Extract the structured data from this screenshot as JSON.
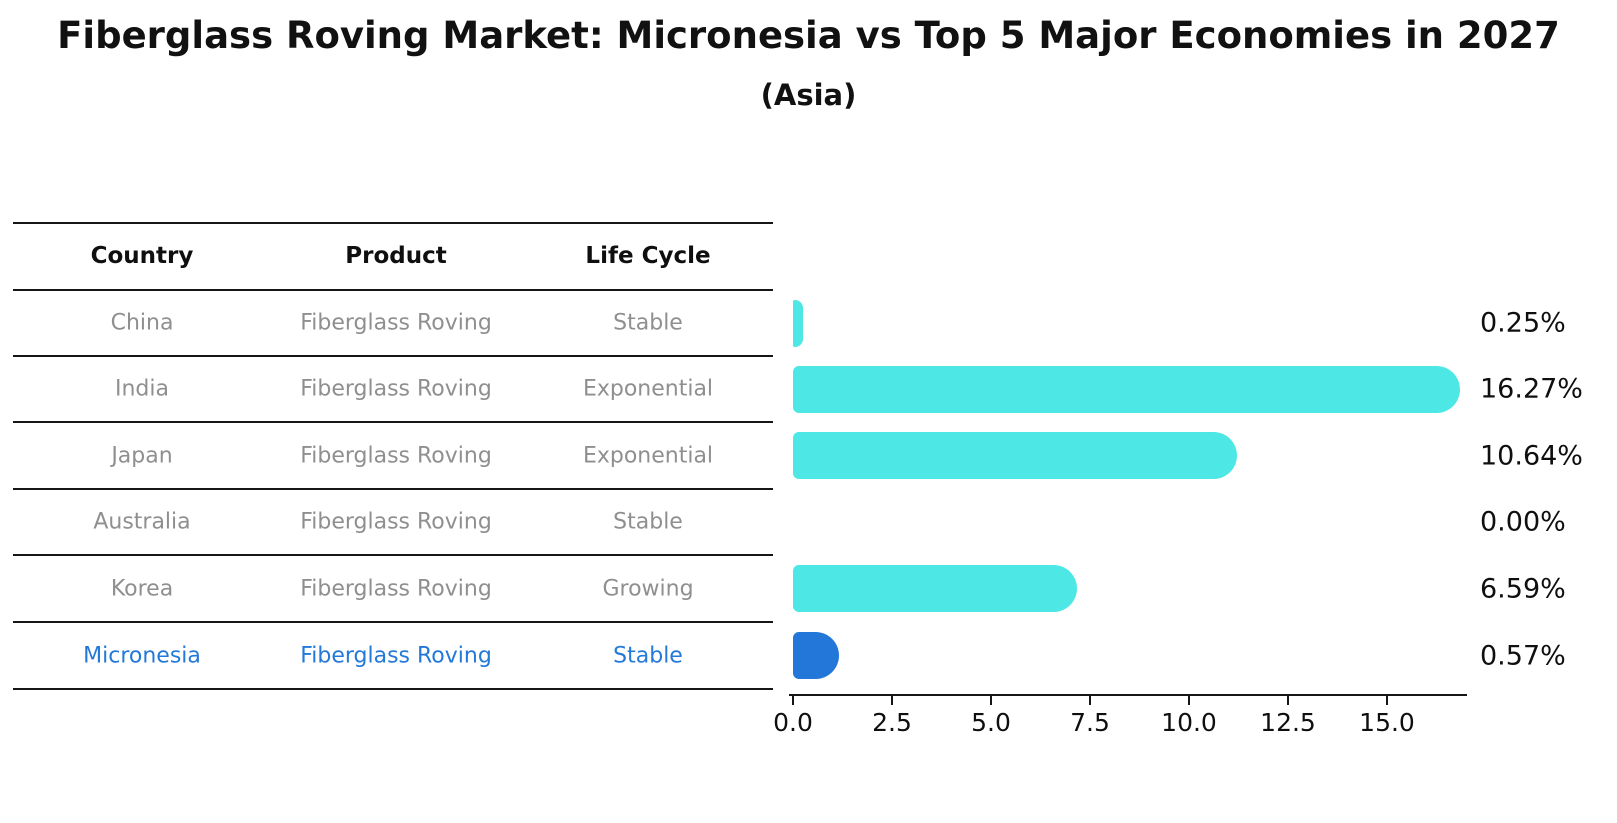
{
  "title": "Fiberglass Roving Market: Micronesia vs Top 5 Major Economies in 2027",
  "subtitle": "(Asia)",
  "table": {
    "columns": [
      "Country",
      "Product",
      "Life Cycle"
    ],
    "rows": [
      {
        "country": "China",
        "product": "Fiberglass Roving",
        "life_cycle": "Stable",
        "highlight": false
      },
      {
        "country": "India",
        "product": "Fiberglass Roving",
        "life_cycle": "Exponential",
        "highlight": false
      },
      {
        "country": "Japan",
        "product": "Fiberglass Roving",
        "life_cycle": "Exponential",
        "highlight": false
      },
      {
        "country": "Australia",
        "product": "Fiberglass Roving",
        "life_cycle": "Stable",
        "highlight": false
      },
      {
        "country": "Korea",
        "product": "Fiberglass Roving",
        "life_cycle": "Growing",
        "highlight": false
      },
      {
        "country": "Micronesia",
        "product": "Fiberglass Roving",
        "life_cycle": "Stable",
        "highlight": true
      }
    ]
  },
  "chart_data": {
    "type": "bar",
    "orientation": "horizontal",
    "categories": [
      "China",
      "India",
      "Japan",
      "Australia",
      "Korea",
      "Micronesia"
    ],
    "values": [
      0.25,
      16.27,
      10.64,
      0.0,
      6.59,
      0.57
    ],
    "value_labels": [
      "0.25%",
      "16.27%",
      "10.64%",
      "0.00%",
      "6.59%",
      "0.57%"
    ],
    "x_ticks": [
      "0.0",
      "2.5",
      "5.0",
      "7.5",
      "10.0",
      "12.5",
      "15.0"
    ],
    "x_tick_values": [
      0,
      2.5,
      5,
      7.5,
      10,
      12.5,
      15
    ],
    "xlim": [
      0,
      17
    ],
    "grid": false,
    "legend": "none",
    "highlight_index": 5,
    "title": "Fiberglass Roving Market: Micronesia vs Top 5 Major Economies in 2027",
    "xlabel": "",
    "ylabel": ""
  },
  "colors": {
    "bar_default": "#4DE7E5",
    "bar_highlight": "#2277D8",
    "highlight_text": "#2379D9",
    "row_text": "#8f8f8f",
    "header_text": "#0f0f0f",
    "line": "#161616"
  }
}
